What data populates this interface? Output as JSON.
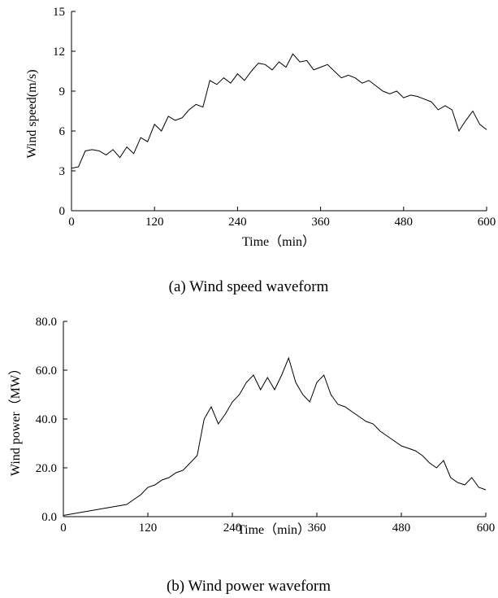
{
  "chart_data": [
    {
      "type": "line",
      "caption": "(a) Wind speed waveform",
      "xlabel": "Time（min）",
      "ylabel": "Wind speed(m/s)",
      "xlim": [
        0,
        600
      ],
      "ylim": [
        0,
        15
      ],
      "xticks": [
        0,
        120,
        240,
        360,
        480,
        600
      ],
      "yticks": [
        0,
        3,
        6,
        9,
        12,
        15
      ],
      "ytick_labels": [
        "0",
        "3",
        "6",
        "9",
        "12",
        "15"
      ],
      "grid": false,
      "series": [
        {
          "x": [
            0,
            10,
            20,
            30,
            40,
            50,
            60,
            70,
            80,
            90,
            100,
            110,
            120,
            130,
            140,
            150,
            160,
            170,
            180,
            190,
            200,
            210,
            220,
            230,
            240,
            250,
            260,
            270,
            280,
            290,
            300,
            310,
            320,
            330,
            340,
            350,
            360,
            370,
            380,
            390,
            400,
            410,
            420,
            430,
            440,
            450,
            460,
            470,
            480,
            490,
            500,
            510,
            520,
            530,
            540,
            550,
            560,
            570,
            580,
            590,
            600
          ],
          "y": [
            3.2,
            3.3,
            4.5,
            4.6,
            4.5,
            4.2,
            4.6,
            4.0,
            4.8,
            4.3,
            5.5,
            5.2,
            6.5,
            6.0,
            7.1,
            6.8,
            7.0,
            7.6,
            8.0,
            7.8,
            9.8,
            9.5,
            10.0,
            9.6,
            10.3,
            9.8,
            10.5,
            11.1,
            11.0,
            10.6,
            11.2,
            10.8,
            11.8,
            11.2,
            11.3,
            10.6,
            10.8,
            11.0,
            10.5,
            10.0,
            10.2,
            10.0,
            9.6,
            9.8,
            9.4,
            9.0,
            8.8,
            9.0,
            8.5,
            8.7,
            8.6,
            8.4,
            8.2,
            7.6,
            7.9,
            7.6,
            6.0,
            6.8,
            7.5,
            6.5,
            6.1
          ]
        }
      ]
    },
    {
      "type": "line",
      "caption": "(b) Wind power waveform",
      "xlabel": "Time（min）",
      "ylabel": "Wind power（MW）",
      "xlim": [
        0,
        600
      ],
      "ylim": [
        0,
        80
      ],
      "xticks": [
        0,
        120,
        240,
        360,
        480,
        600
      ],
      "yticks": [
        0,
        20,
        40,
        60,
        80
      ],
      "ytick_labels": [
        "0.0",
        "20.0",
        "40.0",
        "60.0",
        "80.0"
      ],
      "grid": false,
      "series": [
        {
          "x": [
            0,
            10,
            20,
            30,
            40,
            50,
            60,
            70,
            80,
            90,
            100,
            110,
            120,
            130,
            140,
            150,
            160,
            170,
            180,
            190,
            200,
            210,
            220,
            230,
            240,
            250,
            260,
            270,
            280,
            290,
            300,
            310,
            320,
            330,
            340,
            350,
            360,
            370,
            380,
            390,
            400,
            410,
            420,
            430,
            440,
            450,
            460,
            470,
            480,
            490,
            500,
            510,
            520,
            530,
            540,
            550,
            560,
            570,
            580,
            590,
            600
          ],
          "y": [
            0.5,
            1.0,
            1.5,
            2.0,
            2.5,
            3.0,
            3.5,
            4.0,
            4.5,
            5.0,
            7.0,
            9.0,
            12.0,
            13.0,
            15.0,
            16.0,
            18.0,
            19.0,
            22.0,
            25.0,
            40.0,
            45.0,
            38.0,
            42.0,
            47.0,
            50.0,
            55.0,
            58.0,
            52.0,
            57.0,
            52.0,
            58.0,
            65.0,
            55.0,
            50.0,
            47.0,
            55.0,
            58.0,
            50.0,
            46.0,
            45.0,
            43.0,
            41.0,
            39.0,
            38.0,
            35.0,
            33.0,
            31.0,
            29.0,
            28.0,
            27.0,
            25.0,
            22.0,
            20.0,
            23.0,
            16.0,
            14.0,
            13.0,
            16.0,
            12.0,
            11.0
          ]
        }
      ]
    }
  ]
}
